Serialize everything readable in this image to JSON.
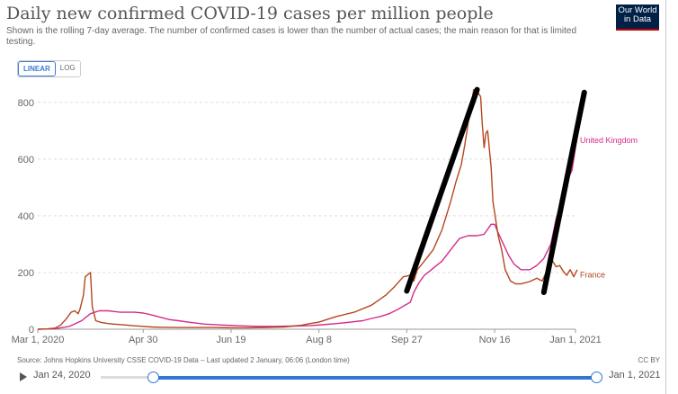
{
  "header": {
    "title": "Daily new confirmed COVID-19 cases per million people",
    "subtitle": "Shown is the rolling 7-day average. The number of confirmed cases is lower than the number of actual cases; the main reason for that is limited testing.",
    "logo_line1": "Our World",
    "logo_line2": "in Data"
  },
  "toggle": {
    "linear": "LINEAR",
    "log": "LOG"
  },
  "footer": {
    "source": "Source: Johns Hopkins University CSSE COVID-19 Data – Last updated 2 January, 06:06 (London time)",
    "license": "CC BY"
  },
  "timeline": {
    "start": "Jan 24, 2020",
    "end": "Jan 1, 2021"
  },
  "colors": {
    "uk": "#d42c8a",
    "france": "#b5461e",
    "grid": "#dddddd"
  },
  "chart_data": {
    "type": "line",
    "title": "Daily new confirmed COVID-19 cases per million people",
    "xlabel": "",
    "ylabel": "",
    "x_tick_labels": [
      "Mar 1, 2020",
      "Apr 30",
      "Jun 19",
      "Aug 8",
      "Sep 27",
      "Nov 16",
      "Jan 1, 2021"
    ],
    "x_tick_days": [
      0,
      60,
      110,
      160,
      210,
      260,
      306
    ],
    "xlim": [
      0,
      306
    ],
    "ylim": [
      0,
      850
    ],
    "y_ticks": [
      0,
      200,
      400,
      600,
      800
    ],
    "series": [
      {
        "name": "United Kingdom",
        "points": [
          [
            0,
            0
          ],
          [
            10,
            2
          ],
          [
            18,
            10
          ],
          [
            25,
            30
          ],
          [
            30,
            55
          ],
          [
            35,
            65
          ],
          [
            40,
            65
          ],
          [
            47,
            60
          ],
          [
            55,
            60
          ],
          [
            60,
            57
          ],
          [
            65,
            50
          ],
          [
            70,
            42
          ],
          [
            75,
            34
          ],
          [
            80,
            30
          ],
          [
            87,
            24
          ],
          [
            95,
            18
          ],
          [
            105,
            15
          ],
          [
            115,
            12
          ],
          [
            125,
            10
          ],
          [
            135,
            10
          ],
          [
            145,
            11
          ],
          [
            155,
            13
          ],
          [
            162,
            16
          ],
          [
            170,
            20
          ],
          [
            178,
            25
          ],
          [
            185,
            30
          ],
          [
            190,
            38
          ],
          [
            195,
            45
          ],
          [
            200,
            55
          ],
          [
            205,
            70
          ],
          [
            209,
            85
          ],
          [
            212,
            95
          ],
          [
            214,
            130
          ],
          [
            217,
            165
          ],
          [
            220,
            190
          ],
          [
            223,
            205
          ],
          [
            226,
            220
          ],
          [
            230,
            240
          ],
          [
            235,
            280
          ],
          [
            240,
            320
          ],
          [
            245,
            330
          ],
          [
            250,
            330
          ],
          [
            254,
            335
          ],
          [
            258,
            370
          ],
          [
            260,
            370
          ],
          [
            262,
            340
          ],
          [
            265,
            300
          ],
          [
            268,
            260
          ],
          [
            271,
            230
          ],
          [
            275,
            210
          ],
          [
            280,
            210
          ],
          [
            284,
            225
          ],
          [
            288,
            250
          ],
          [
            292,
            300
          ],
          [
            295,
            390
          ],
          [
            298,
            450
          ],
          [
            301,
            520
          ],
          [
            304,
            560
          ],
          [
            306,
            640
          ],
          [
            307,
            680
          ]
        ]
      },
      {
        "name": "France",
        "points": [
          [
            0,
            0
          ],
          [
            5,
            1
          ],
          [
            10,
            4
          ],
          [
            13,
            15
          ],
          [
            16,
            35
          ],
          [
            19,
            60
          ],
          [
            21,
            65
          ],
          [
            23,
            55
          ],
          [
            24,
            70
          ],
          [
            26,
            120
          ],
          [
            27,
            185
          ],
          [
            29,
            195
          ],
          [
            30,
            200
          ],
          [
            31,
            80
          ],
          [
            33,
            30
          ],
          [
            36,
            24
          ],
          [
            40,
            20
          ],
          [
            45,
            17
          ],
          [
            50,
            15
          ],
          [
            55,
            12
          ],
          [
            60,
            10
          ],
          [
            65,
            8
          ],
          [
            70,
            7
          ],
          [
            80,
            6
          ],
          [
            90,
            6
          ],
          [
            100,
            6
          ],
          [
            110,
            5
          ],
          [
            120,
            5
          ],
          [
            130,
            6
          ],
          [
            140,
            8
          ],
          [
            150,
            14
          ],
          [
            155,
            20
          ],
          [
            160,
            25
          ],
          [
            170,
            45
          ],
          [
            180,
            60
          ],
          [
            190,
            85
          ],
          [
            198,
            120
          ],
          [
            203,
            150
          ],
          [
            208,
            185
          ],
          [
            212,
            190
          ],
          [
            214,
            170
          ],
          [
            216,
            210
          ],
          [
            220,
            240
          ],
          [
            225,
            280
          ],
          [
            230,
            350
          ],
          [
            235,
            450
          ],
          [
            238,
            520
          ],
          [
            241,
            580
          ],
          [
            243,
            650
          ],
          [
            245,
            730
          ],
          [
            247,
            800
          ],
          [
            248,
            845
          ],
          [
            250,
            840
          ],
          [
            252,
            820
          ],
          [
            253,
            720
          ],
          [
            254,
            640
          ],
          [
            255,
            690
          ],
          [
            256,
            700
          ],
          [
            258,
            570
          ],
          [
            259,
            450
          ],
          [
            262,
            330
          ],
          [
            264,
            280
          ],
          [
            266,
            210
          ],
          [
            269,
            170
          ],
          [
            272,
            160
          ],
          [
            275,
            160
          ],
          [
            280,
            168
          ],
          [
            284,
            180
          ],
          [
            287,
            170
          ],
          [
            290,
            210
          ],
          [
            293,
            240
          ],
          [
            295,
            220
          ],
          [
            297,
            225
          ],
          [
            299,
            205
          ],
          [
            301,
            190
          ],
          [
            303,
            210
          ],
          [
            305,
            185
          ],
          [
            307,
            210
          ]
        ]
      }
    ],
    "series_labels": [
      {
        "name": "United Kingdom",
        "text": "United Kingdom"
      },
      {
        "name": "France",
        "text": "France"
      }
    ],
    "annotations": [
      {
        "type": "hand-drawn-line",
        "from": [
          210,
          135
        ],
        "to": [
          250,
          845
        ],
        "color": "#000000"
      },
      {
        "type": "hand-drawn-line",
        "from": [
          288,
          130
        ],
        "to": [
          311,
          835
        ],
        "color": "#000000"
      }
    ]
  }
}
